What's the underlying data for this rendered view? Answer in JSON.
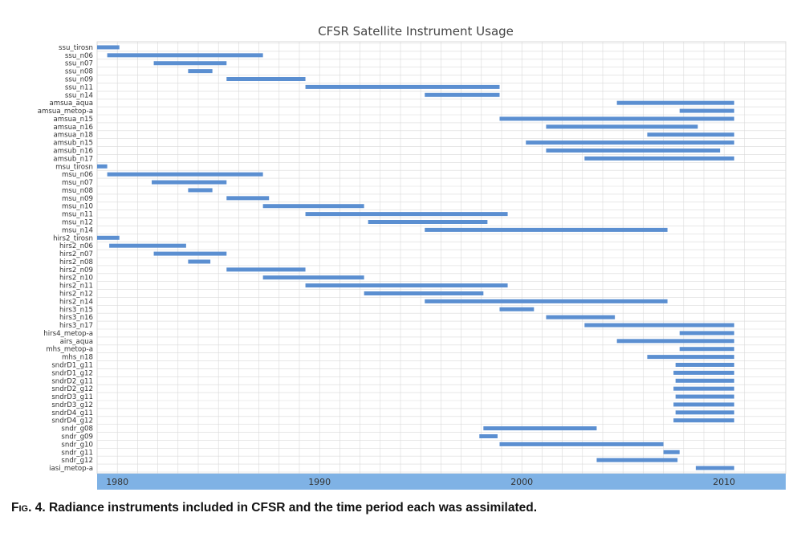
{
  "caption": {
    "figure_label": "Fig. 4.",
    "text": "Radiance instruments included in CFSR and the time period each was assimilated."
  },
  "colors": {
    "bar": "#5b8fd1",
    "axis_band": "#7fb2e5",
    "grid": "#d9d9d9"
  },
  "chart_data": {
    "type": "bar",
    "orientation": "horizontal-timeline",
    "title": "CFSR Satellite Instrument Usage",
    "xlabel": "",
    "ylabel": "",
    "xlim": [
      1979,
      2011
    ],
    "x_ticks": [
      "1980",
      "1990",
      "2000",
      "2010"
    ],
    "grid": true,
    "series": [
      {
        "label": "ssu_tirosn",
        "start": 1979.0,
        "end": 1980.1
      },
      {
        "label": "ssu_n06",
        "start": 1979.5,
        "end": 1987.2
      },
      {
        "label": "ssu_n07",
        "start": 1981.8,
        "end": 1985.4
      },
      {
        "label": "ssu_n08",
        "start": 1983.5,
        "end": 1984.7
      },
      {
        "label": "ssu_n09",
        "start": 1985.4,
        "end": 1989.3
      },
      {
        "label": "ssu_n11",
        "start": 1989.3,
        "end": 1998.9
      },
      {
        "label": "ssu_n14",
        "start": 1995.2,
        "end": 1998.9
      },
      {
        "label": "amsua_aqua",
        "start": 2004.7,
        "end": 2010.5
      },
      {
        "label": "amsua_metop-a",
        "start": 2007.8,
        "end": 2010.5
      },
      {
        "label": "amsua_n15",
        "start": 1998.9,
        "end": 2010.5
      },
      {
        "label": "amsua_n16",
        "start": 2001.2,
        "end": 2008.7
      },
      {
        "label": "amsua_n18",
        "start": 2006.2,
        "end": 2010.5
      },
      {
        "label": "amsub_n15",
        "start": 2000.2,
        "end": 2010.5
      },
      {
        "label": "amsub_n16",
        "start": 2001.2,
        "end": 2009.8
      },
      {
        "label": "amsub_n17",
        "start": 2003.1,
        "end": 2010.5
      },
      {
        "label": "msu_tirosn",
        "start": 1979.0,
        "end": 1979.5
      },
      {
        "label": "msu_n06",
        "start": 1979.5,
        "end": 1987.2
      },
      {
        "label": "msu_n07",
        "start": 1981.7,
        "end": 1985.4
      },
      {
        "label": "msu_n08",
        "start": 1983.5,
        "end": 1984.7
      },
      {
        "label": "msu_n09",
        "start": 1985.4,
        "end": 1987.5
      },
      {
        "label": "msu_n10",
        "start": 1987.2,
        "end": 1992.2
      },
      {
        "label": "msu_n11",
        "start": 1989.3,
        "end": 1999.3
      },
      {
        "label": "msu_n12",
        "start": 1992.4,
        "end": 1998.3
      },
      {
        "label": "msu_n14",
        "start": 1995.2,
        "end": 2007.2
      },
      {
        "label": "hirs2_tirosn",
        "start": 1979.0,
        "end": 1980.1
      },
      {
        "label": "hirs2_n06",
        "start": 1979.6,
        "end": 1983.4
      },
      {
        "label": "hirs2_n07",
        "start": 1981.8,
        "end": 1985.4
      },
      {
        "label": "hirs2_n08",
        "start": 1983.5,
        "end": 1984.6
      },
      {
        "label": "hirs2_n09",
        "start": 1985.4,
        "end": 1989.3
      },
      {
        "label": "hirs2_n10",
        "start": 1987.2,
        "end": 1992.2
      },
      {
        "label": "hirs2_n11",
        "start": 1989.3,
        "end": 1999.3
      },
      {
        "label": "hirs2_n12",
        "start": 1992.2,
        "end": 1998.1
      },
      {
        "label": "hirs2_n14",
        "start": 1995.2,
        "end": 2007.2
      },
      {
        "label": "hirs3_n15",
        "start": 1998.9,
        "end": 2000.6
      },
      {
        "label": "hirs3_n16",
        "start": 2001.2,
        "end": 2004.6
      },
      {
        "label": "hirs3_n17",
        "start": 2003.1,
        "end": 2010.5
      },
      {
        "label": "hirs4_metop-a",
        "start": 2007.8,
        "end": 2010.5
      },
      {
        "label": "airs_aqua",
        "start": 2004.7,
        "end": 2010.5
      },
      {
        "label": "mhs_metop-a",
        "start": 2007.8,
        "end": 2010.5
      },
      {
        "label": "mhs_n18",
        "start": 2006.2,
        "end": 2010.5
      },
      {
        "label": "sndrD1_g11",
        "start": 2007.6,
        "end": 2010.5
      },
      {
        "label": "sndrD1_g12",
        "start": 2007.5,
        "end": 2010.5
      },
      {
        "label": "sndrD2_g11",
        "start": 2007.6,
        "end": 2010.5
      },
      {
        "label": "sndrD2_g12",
        "start": 2007.5,
        "end": 2010.5
      },
      {
        "label": "sndrD3_g11",
        "start": 2007.6,
        "end": 2010.5
      },
      {
        "label": "sndrD3_g12",
        "start": 2007.5,
        "end": 2010.5
      },
      {
        "label": "sndrD4_g11",
        "start": 2007.6,
        "end": 2010.5
      },
      {
        "label": "sndrD4_g12",
        "start": 2007.5,
        "end": 2010.5
      },
      {
        "label": "sndr_g08",
        "start": 1998.1,
        "end": 2003.7
      },
      {
        "label": "sndr_g09",
        "start": 1997.9,
        "end": 1998.8
      },
      {
        "label": "sndr_g10",
        "start": 1998.9,
        "end": 2007.0
      },
      {
        "label": "sndr_g11",
        "start": 2007.0,
        "end": 2007.8
      },
      {
        "label": "sndr_g12",
        "start": 2003.7,
        "end": 2007.7
      },
      {
        "label": "iasi_metop-a",
        "start": 2008.6,
        "end": 2010.5
      }
    ]
  }
}
